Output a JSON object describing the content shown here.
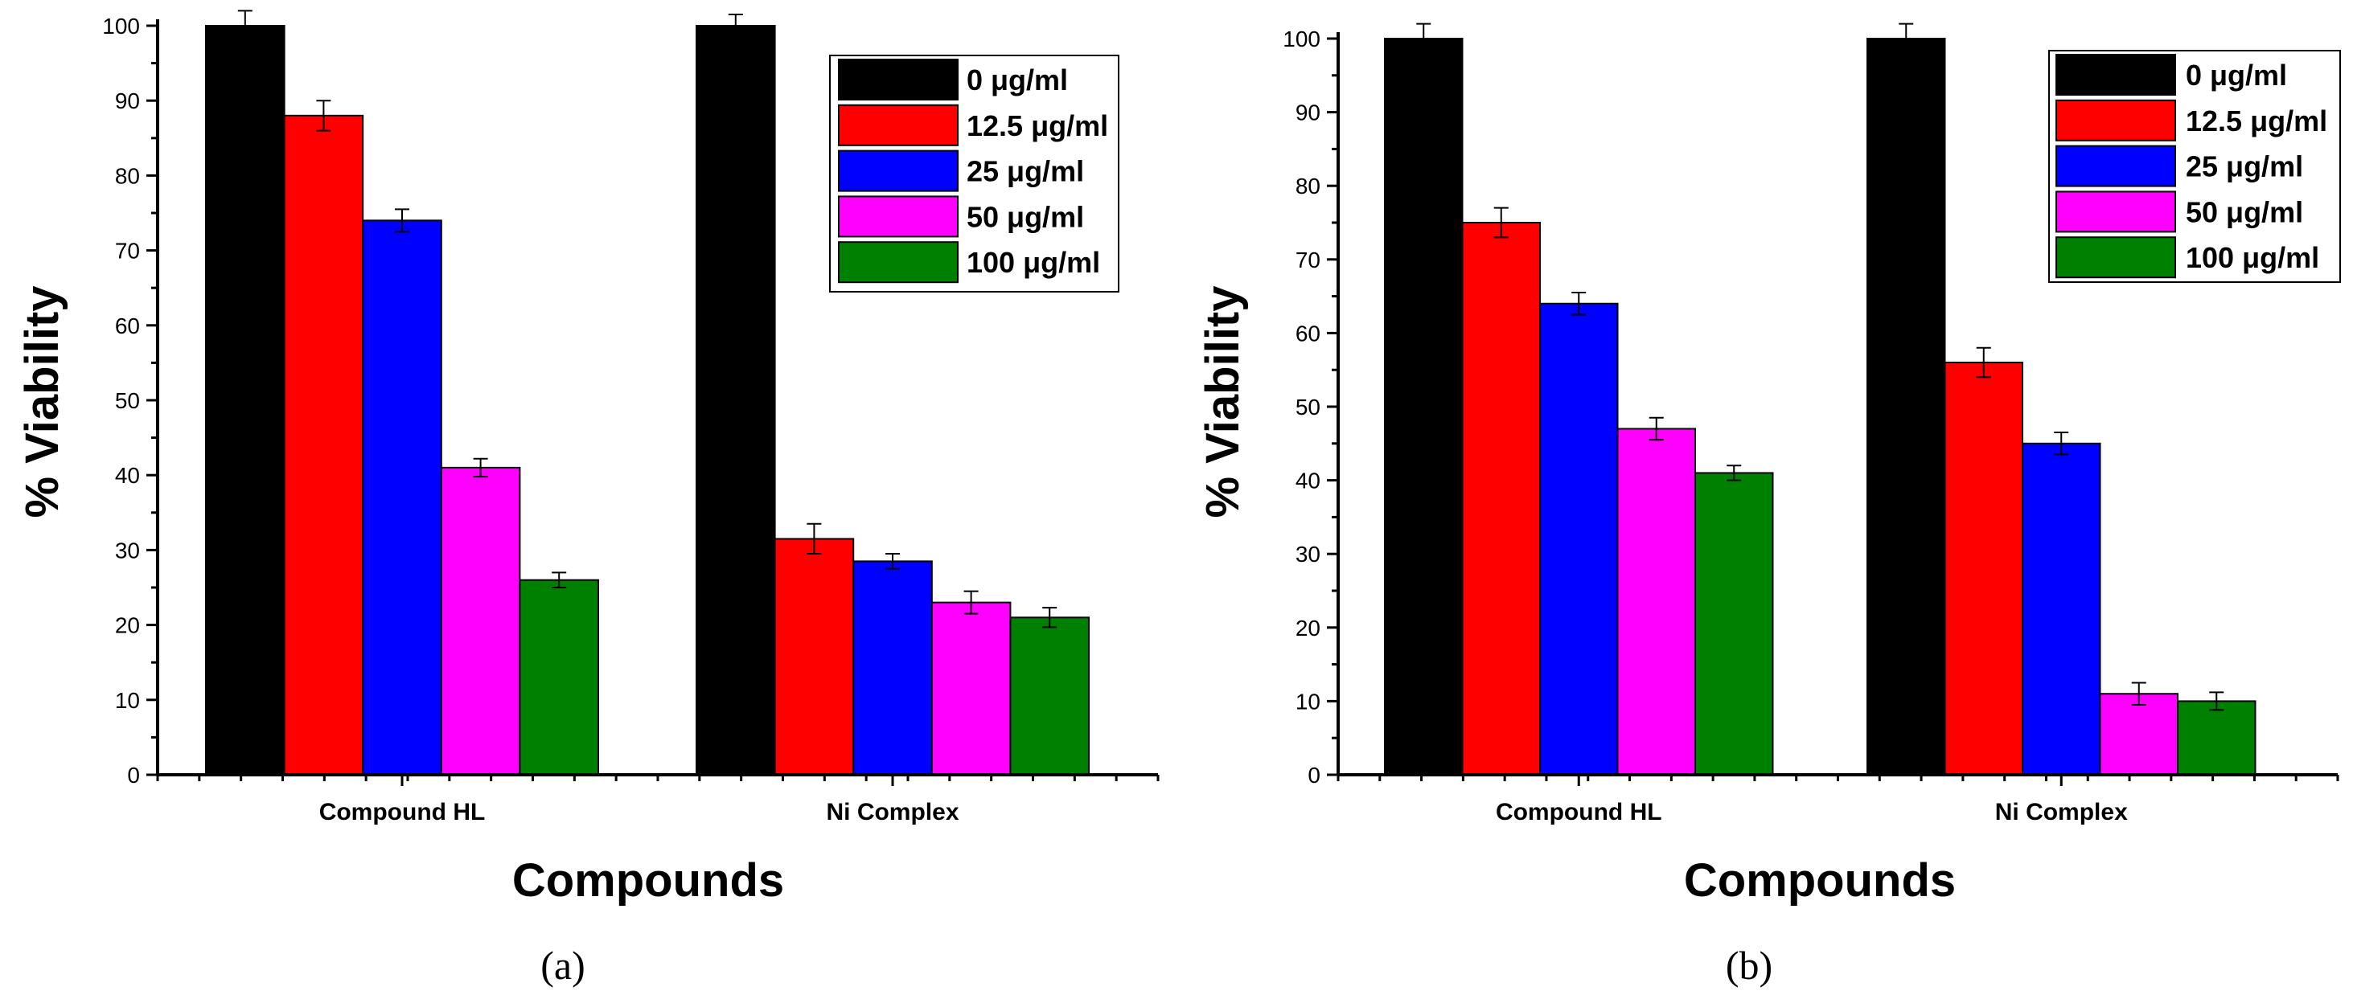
{
  "chart_data": [
    {
      "type": "bar",
      "panel_label": "(a)",
      "xlabel": "Compounds",
      "ylabel": "% Viability",
      "ylim": [
        0,
        100
      ],
      "yticks": [
        0,
        10,
        20,
        30,
        40,
        50,
        60,
        70,
        80,
        90,
        100
      ],
      "categories": [
        "Compound HL",
        "Ni Complex"
      ],
      "legend_position": "top-right",
      "series": [
        {
          "name": "0 μg/ml",
          "color": "#000000",
          "values": [
            100,
            100
          ],
          "errors": [
            2,
            1.5
          ]
        },
        {
          "name": "12.5 μg/ml",
          "color": "#ff0000",
          "values": [
            88,
            31.5
          ],
          "errors": [
            2,
            2
          ]
        },
        {
          "name": "25 μg/ml",
          "color": "#0000ff",
          "values": [
            74,
            28.5
          ],
          "errors": [
            1.5,
            1
          ]
        },
        {
          "name": "50 μg/ml",
          "color": "#ff00ff",
          "values": [
            41,
            23
          ],
          "errors": [
            1.2,
            1.5
          ]
        },
        {
          "name": "100 μg/ml",
          "color": "#008000",
          "values": [
            26,
            21
          ],
          "errors": [
            1,
            1.3
          ]
        }
      ]
    },
    {
      "type": "bar",
      "panel_label": "(b)",
      "xlabel": "Compounds",
      "ylabel": "% Viability",
      "ylim": [
        0,
        100
      ],
      "yticks": [
        0,
        10,
        20,
        30,
        40,
        50,
        60,
        70,
        80,
        90,
        100
      ],
      "categories": [
        "Compound HL",
        "Ni Complex"
      ],
      "legend_position": "top-right",
      "series": [
        {
          "name": "0 μg/ml",
          "color": "#000000",
          "values": [
            100,
            100
          ],
          "errors": [
            2,
            2
          ]
        },
        {
          "name": "12.5 μg/ml",
          "color": "#ff0000",
          "values": [
            75,
            56
          ],
          "errors": [
            2,
            2
          ]
        },
        {
          "name": "25 μg/ml",
          "color": "#0000ff",
          "values": [
            64,
            45
          ],
          "errors": [
            1.5,
            1.5
          ]
        },
        {
          "name": "50 μg/ml",
          "color": "#ff00ff",
          "values": [
            47,
            11
          ],
          "errors": [
            1.5,
            1.5
          ]
        },
        {
          "name": "100 μg/ml",
          "color": "#008000",
          "values": [
            41,
            10
          ],
          "errors": [
            1,
            1.2
          ]
        }
      ]
    }
  ]
}
